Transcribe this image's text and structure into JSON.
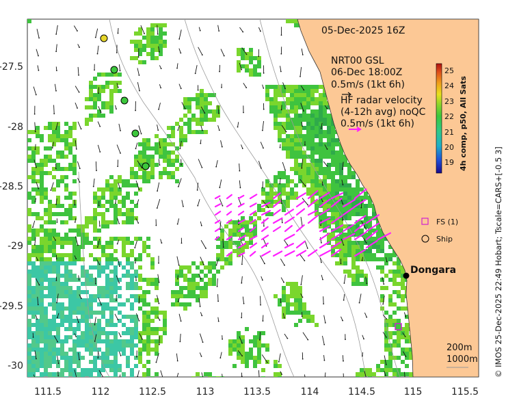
{
  "map": {
    "title_date": "05-Dec-2025 16Z",
    "model": {
      "line1": "NRT00 GSL",
      "line2": "06-Dec 18:00Z",
      "line3": "0.5m/s (1kt 6h)"
    },
    "hf_radar": {
      "line1": "HF radar velocity",
      "line2": "(4-12h avg) noQC",
      "line3": "0.5m/s (1kt 6h)"
    },
    "location_label": "Dongara",
    "legend": {
      "fs": "FS (1)",
      "ship": "Ship"
    },
    "isobath_labels": [
      "200m",
      "1000m"
    ],
    "credit": "© IMOS 25-Dec-2025 22:49 Hobart; Tscale=CARS+[-0.5 3]",
    "colorbar": {
      "title": "4h comp, p50, All Sats",
      "ticks": [
        "25",
        "24",
        "23",
        "22",
        "21",
        "20",
        "19"
      ]
    },
    "x_ticks": [
      "111.5",
      "112",
      "112.5",
      "113",
      "113.5",
      "114",
      "114.5",
      "115",
      "115.5"
    ],
    "y_ticks": [
      "-27.5",
      "-28",
      "-28.5",
      "-29",
      "-29.5",
      "-30"
    ],
    "colors": {
      "land": "#fcc895",
      "sst_warm": "#3fc33f",
      "sst_mid": "#7ad62d",
      "sst_cool": "#3cc7a5",
      "hf_arrows": "#ff20ff",
      "model_arrows": "#111111"
    }
  }
}
